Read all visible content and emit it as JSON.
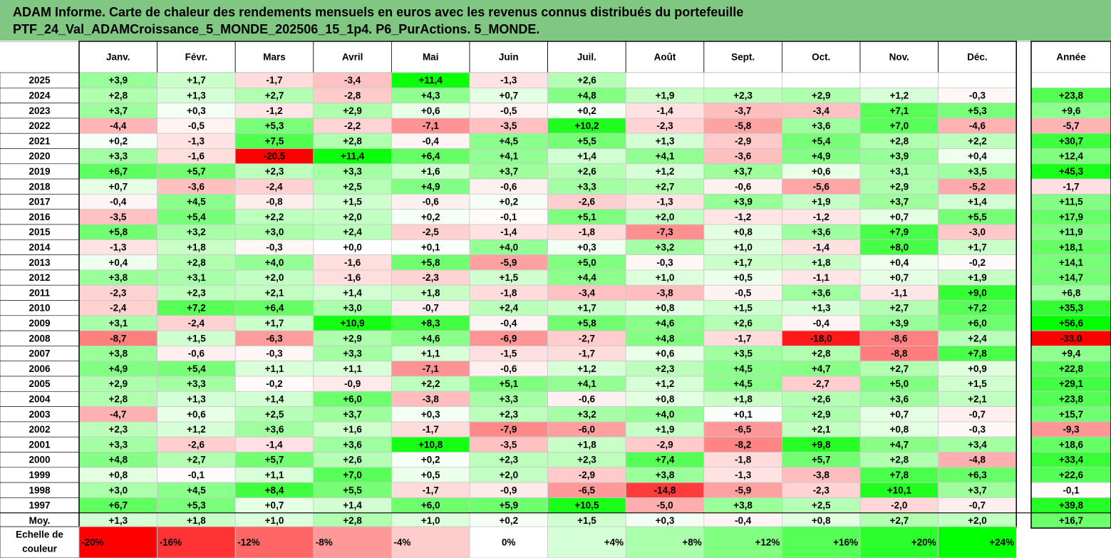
{
  "title": {
    "line1": "ADAM Informe. Carte de chaleur des rendements mensuels en euros avec les revenus connus distribués du portefeuille",
    "line2": "PTF_24_Val_ADAMCroissance_5_MONDE_202506_15_1p4. P6_PurActions. 5_MONDE."
  },
  "chart_data": {
    "type": "heatmap",
    "months": [
      "Janv.",
      "Févr.",
      "Mars",
      "Avril",
      "Mai",
      "Juin",
      "Juil.",
      "Août",
      "Sept.",
      "Oct.",
      "Nov.",
      "Déc."
    ],
    "year_header": "Année",
    "rows": [
      {
        "label": "2025",
        "values": [
          "+3,9",
          "+1,7",
          "-1,7",
          "-3,4",
          "+11,4",
          "-1,3",
          "+2,6",
          "",
          "",
          "",
          "",
          ""
        ],
        "year": ""
      },
      {
        "label": "2024",
        "values": [
          "+2,8",
          "+1,3",
          "+2,7",
          "-2,8",
          "+4,3",
          "+0,7",
          "+4,8",
          "+1,9",
          "+2,3",
          "+2,9",
          "+1,2",
          "-0,3"
        ],
        "year": "+23,8"
      },
      {
        "label": "2023",
        "values": [
          "+3,7",
          "+0,3",
          "-1,2",
          "+2,9",
          "+0,6",
          "-0,5",
          "+0,2",
          "-1,4",
          "-3,7",
          "-3,4",
          "+7,1",
          "+5,3"
        ],
        "year": "+9,6"
      },
      {
        "label": "2022",
        "values": [
          "-4,4",
          "-0,5",
          "+5,3",
          "-2,2",
          "-7,1",
          "-3,5",
          "+10,2",
          "-2,3",
          "-5,8",
          "+3,6",
          "+7,0",
          "-4,6"
        ],
        "year": "-5,7"
      },
      {
        "label": "2021",
        "values": [
          "+0,2",
          "-1,3",
          "+7,5",
          "+2,8",
          "-0,4",
          "+4,5",
          "+5,5",
          "+1,3",
          "-2,9",
          "+5,4",
          "+2,8",
          "+2,2"
        ],
        "year": "+30,7"
      },
      {
        "label": "2020",
        "values": [
          "+3,3",
          "-1,6",
          "-20,5",
          "+11,4",
          "+6,4",
          "+4,1",
          "+1,4",
          "+4,1",
          "-3,6",
          "+4,9",
          "+3,9",
          "+0,4"
        ],
        "year": "+12,4"
      },
      {
        "label": "2019",
        "values": [
          "+6,7",
          "+5,7",
          "+2,3",
          "+3,3",
          "+1,6",
          "+3,7",
          "+2,6",
          "+1,2",
          "+3,7",
          "+0,6",
          "+3,1",
          "+3,5"
        ],
        "year": "+45,3"
      },
      {
        "label": "2018",
        "values": [
          "+0,7",
          "-3,6",
          "-2,4",
          "+2,5",
          "+4,9",
          "-0,6",
          "+3,3",
          "+2,7",
          "-0,6",
          "-5,6",
          "+2,9",
          "-5,2"
        ],
        "year": "-1,7"
      },
      {
        "label": "2017",
        "values": [
          "-0,4",
          "+4,5",
          "-0,8",
          "+1,5",
          "-0,6",
          "+0,2",
          "-2,6",
          "-1,3",
          "+3,9",
          "+1,9",
          "+3,7",
          "+1,4"
        ],
        "year": "+11,5"
      },
      {
        "label": "2016",
        "values": [
          "-3,5",
          "+5,4",
          "+2,2",
          "+2,0",
          "+0,2",
          "-0,1",
          "+5,1",
          "+2,0",
          "-1,2",
          "-1,2",
          "+0,7",
          "+5,5"
        ],
        "year": "+17,9"
      },
      {
        "label": "2015",
        "values": [
          "+5,8",
          "+3,2",
          "+3,0",
          "+2,4",
          "-2,5",
          "-1,4",
          "-1,8",
          "-7,3",
          "+0,8",
          "+3,6",
          "+7,9",
          "-3,0"
        ],
        "year": "+11,9"
      },
      {
        "label": "2014",
        "values": [
          "-1,3",
          "+1,8",
          "-0,3",
          "+0,0",
          "+0,1",
          "+4,0",
          "+0,3",
          "+3,2",
          "+1,0",
          "-1,4",
          "+8,0",
          "+1,7"
        ],
        "year": "+18,1"
      },
      {
        "label": "2013",
        "values": [
          "+0,4",
          "+2,8",
          "+4,0",
          "-1,6",
          "+5,8",
          "-5,9",
          "+5,0",
          "-0,3",
          "+1,7",
          "+1,8",
          "+0,4",
          "-0,2"
        ],
        "year": "+14,1"
      },
      {
        "label": "2012",
        "values": [
          "+3,8",
          "+3,1",
          "+2,0",
          "-1,6",
          "-2,3",
          "+1,5",
          "+4,4",
          "+1,0",
          "+0,5",
          "-1,1",
          "+0,7",
          "+1,9"
        ],
        "year": "+14,7"
      },
      {
        "label": "2011",
        "values": [
          "-2,3",
          "+2,3",
          "+2,1",
          "+1,4",
          "+1,8",
          "-1,8",
          "-3,4",
          "-3,8",
          "-0,5",
          "+3,6",
          "-1,1",
          "+9,0"
        ],
        "year": "+6,8"
      },
      {
        "label": "2010",
        "values": [
          "-2,4",
          "+7,2",
          "+6,4",
          "+3,0",
          "-0,7",
          "+2,4",
          "+1,7",
          "+0,8",
          "+1,5",
          "+1,3",
          "+2,7",
          "+7,2"
        ],
        "year": "+35,3"
      },
      {
        "label": "2009",
        "values": [
          "+3,1",
          "-2,4",
          "+1,7",
          "+10,9",
          "+8,3",
          "-0,4",
          "+5,8",
          "+4,6",
          "+2,6",
          "-0,4",
          "+3,9",
          "+6,0"
        ],
        "year": "+56,6"
      },
      {
        "label": "2008",
        "values": [
          "-8,7",
          "+1,5",
          "-6,3",
          "+2,9",
          "+4,6",
          "-6,9",
          "-2,7",
          "+4,8",
          "-1,7",
          "-18,0",
          "-8,6",
          "+2,4"
        ],
        "year": "-33,0"
      },
      {
        "label": "2007",
        "values": [
          "+3,8",
          "-0,6",
          "-0,3",
          "+3,3",
          "+1,1",
          "-1,5",
          "-1,7",
          "+0,6",
          "+3,5",
          "+2,8",
          "-8,8",
          "+7,8"
        ],
        "year": "+9,4"
      },
      {
        "label": "2006",
        "values": [
          "+4,9",
          "+5,4",
          "+1,1",
          "+1,1",
          "-7,1",
          "-0,6",
          "+1,2",
          "+2,3",
          "+4,5",
          "+4,7",
          "+2,7",
          "+0,9"
        ],
        "year": "+22,8"
      },
      {
        "label": "2005",
        "values": [
          "+2,9",
          "+3,3",
          "-0,2",
          "-0,9",
          "+2,2",
          "+5,1",
          "+4,1",
          "+1,2",
          "+4,5",
          "-2,7",
          "+5,0",
          "+1,5"
        ],
        "year": "+29,1"
      },
      {
        "label": "2004",
        "values": [
          "+2,8",
          "+1,3",
          "+1,4",
          "+6,0",
          "-3,8",
          "+3,3",
          "-0,6",
          "+0,8",
          "+1,8",
          "+2,6",
          "+3,6",
          "+2,1"
        ],
        "year": "+23,8"
      },
      {
        "label": "2003",
        "values": [
          "-4,7",
          "+0,6",
          "+2,5",
          "+3,7",
          "+0,3",
          "+2,3",
          "+3,2",
          "+4,0",
          "+0,1",
          "+2,9",
          "+0,7",
          "-0,7"
        ],
        "year": "+15,7"
      },
      {
        "label": "2002",
        "values": [
          "+2,3",
          "+1,2",
          "+3,6",
          "+1,6",
          "-1,7",
          "-7,9",
          "-6,0",
          "+1,9",
          "-6,5",
          "+2,1",
          "+0,8",
          "-0,3"
        ],
        "year": "-9,3"
      },
      {
        "label": "2001",
        "values": [
          "+3,3",
          "-2,6",
          "-1,4",
          "+3,6",
          "+10,8",
          "-3,5",
          "+1,8",
          "-2,9",
          "-8,2",
          "+9,8",
          "+4,7",
          "+3,4"
        ],
        "year": "+18,6"
      },
      {
        "label": "2000",
        "values": [
          "+4,8",
          "+2,7",
          "+5,7",
          "+2,6",
          "+0,2",
          "+2,3",
          "+2,3",
          "+7,4",
          "-1,8",
          "+5,7",
          "+2,8",
          "-4,8"
        ],
        "year": "+33,4"
      },
      {
        "label": "1999",
        "values": [
          "+0,8",
          "-0,1",
          "+1,1",
          "+7,0",
          "+0,5",
          "+2,0",
          "-2,9",
          "+3,8",
          "-1,3",
          "-3,8",
          "+7,8",
          "+6,3"
        ],
        "year": "+22,6"
      },
      {
        "label": "1998",
        "values": [
          "+3,0",
          "+4,5",
          "+8,4",
          "+5,5",
          "-1,7",
          "-0,9",
          "-6,5",
          "-14,8",
          "-5,9",
          "-2,3",
          "+10,1",
          "+3,7"
        ],
        "year": "-0,1"
      },
      {
        "label": "1997",
        "values": [
          "+6,7",
          "+5,3",
          "+0,7",
          "+1,4",
          "+6,0",
          "+5,9",
          "+10,5",
          "-5,0",
          "+3,8",
          "+2,5",
          "-2,0",
          "-0,7"
        ],
        "year": "+39,8"
      },
      {
        "label": "Moy.",
        "values": [
          "+1,3",
          "+1,8",
          "+1,0",
          "+2,8",
          "+1,0",
          "+0,2",
          "+1,5",
          "+0,3",
          "-0,4",
          "+0,8",
          "+2,7",
          "+2,0"
        ],
        "year": "+16,7"
      }
    ],
    "scale_label": [
      "Echelle de",
      "couleur"
    ],
    "scale": [
      "-20%",
      "-16%",
      "-12%",
      "-8%",
      "-4%",
      "0%",
      "+4%",
      "+8%",
      "+12%",
      "+16%",
      "+20%",
      "+24%"
    ],
    "colors": {
      "negative": "#ff0000",
      "positive": "#00ff00",
      "neutral": "#ffffff",
      "title_bg": "#80c782"
    }
  }
}
